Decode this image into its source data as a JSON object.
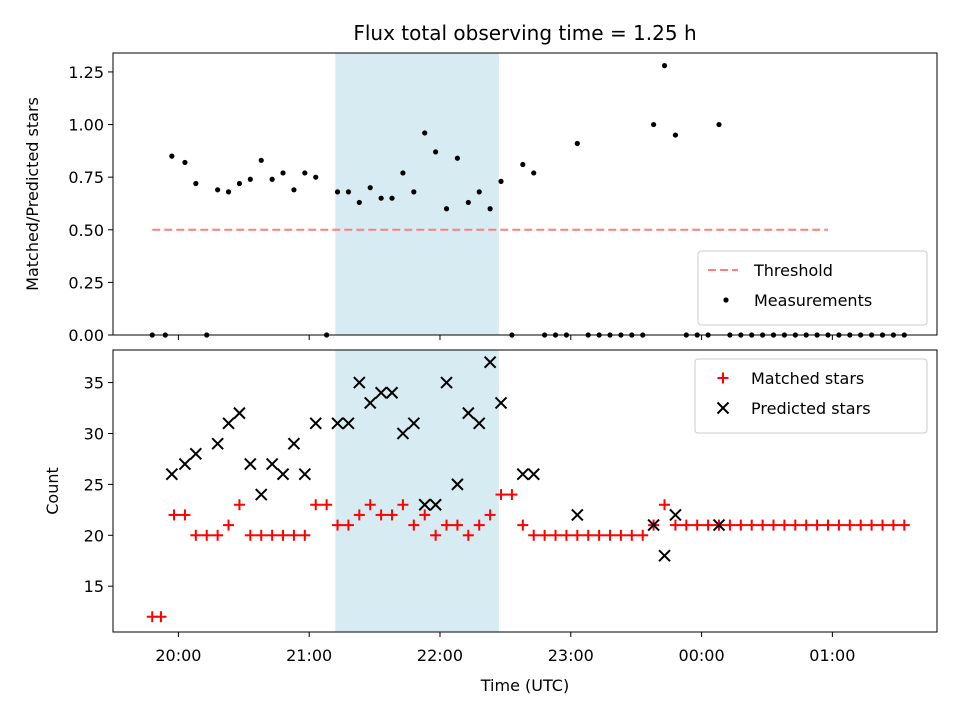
{
  "chart_data": {
    "type": "scatter",
    "title": "Flux total observing time = 1.25 h",
    "xlabel": "Time (UTC)",
    "x_ticks": [
      "20:00",
      "21:00",
      "22:00",
      "23:00",
      "00:00",
      "01:00"
    ],
    "shaded_interval": {
      "start": "21:12",
      "end": "22:27",
      "color": "#add8e6"
    },
    "panels": [
      {
        "ylabel": "Matched/Predicted stars",
        "ylim": [
          0,
          1.34
        ],
        "y_ticks": [
          "0.00",
          "0.25",
          "0.50",
          "0.75",
          "1.00",
          "1.25"
        ],
        "legend_position": "lower-right",
        "series": [
          {
            "name": "Threshold",
            "type": "line",
            "style": "dashed",
            "color": "#ff7f7f",
            "x_range": [
              "19:48",
              "24:58"
            ],
            "y": 0.5
          },
          {
            "name": "Measurements",
            "type": "scatter",
            "marker": "dot",
            "color": "#000000",
            "points": [
              [
                "19:48",
                0.0
              ],
              [
                "19:54",
                0.0
              ],
              [
                "19:57",
                0.85
              ],
              [
                "20:03",
                0.82
              ],
              [
                "20:08",
                0.72
              ],
              [
                "20:13",
                0.0
              ],
              [
                "20:18",
                0.69
              ],
              [
                "20:23",
                0.68
              ],
              [
                "20:28",
                0.72
              ],
              [
                "20:33",
                0.74
              ],
              [
                "20:38",
                0.83
              ],
              [
                "20:43",
                0.74
              ],
              [
                "20:48",
                0.77
              ],
              [
                "20:53",
                0.69
              ],
              [
                "20:58",
                0.77
              ],
              [
                "21:03",
                0.75
              ],
              [
                "21:08",
                0.0
              ],
              [
                "21:13",
                0.68
              ],
              [
                "21:18",
                0.68
              ],
              [
                "21:23",
                0.63
              ],
              [
                "21:28",
                0.7
              ],
              [
                "21:33",
                0.65
              ],
              [
                "21:38",
                0.65
              ],
              [
                "21:43",
                0.77
              ],
              [
                "21:48",
                0.68
              ],
              [
                "21:53",
                0.96
              ],
              [
                "21:58",
                0.87
              ],
              [
                "22:03",
                0.6
              ],
              [
                "22:08",
                0.84
              ],
              [
                "22:13",
                0.63
              ],
              [
                "22:18",
                0.68
              ],
              [
                "22:23",
                0.6
              ],
              [
                "22:28",
                0.73
              ],
              [
                "22:33",
                0.0
              ],
              [
                "22:38",
                0.81
              ],
              [
                "22:43",
                0.77
              ],
              [
                "22:48",
                0.0
              ],
              [
                "22:53",
                0.0
              ],
              [
                "22:58",
                0.0
              ],
              [
                "23:03",
                0.91
              ],
              [
                "23:08",
                0.0
              ],
              [
                "23:13",
                0.0
              ],
              [
                "23:18",
                0.0
              ],
              [
                "23:23",
                0.0
              ],
              [
                "23:28",
                0.0
              ],
              [
                "23:33",
                0.0
              ],
              [
                "23:38",
                1.0
              ],
              [
                "23:43",
                1.28
              ],
              [
                "23:48",
                0.95
              ],
              [
                "23:53",
                0.0
              ],
              [
                "23:58",
                0.0
              ],
              [
                "24:03",
                0.0
              ],
              [
                "24:08",
                1.0
              ],
              [
                "24:13",
                0.0
              ],
              [
                "24:18",
                0.0
              ],
              [
                "24:23",
                0.0
              ],
              [
                "24:28",
                0.0
              ],
              [
                "24:33",
                0.0
              ],
              [
                "24:38",
                0.0
              ],
              [
                "24:43",
                0.0
              ],
              [
                "24:48",
                0.0
              ],
              [
                "24:53",
                0.0
              ],
              [
                "24:58",
                0.0
              ],
              [
                "25:03",
                0.0
              ],
              [
                "25:08",
                0.0
              ],
              [
                "25:13",
                0.0
              ],
              [
                "25:18",
                0.0
              ],
              [
                "25:23",
                0.0
              ],
              [
                "25:28",
                0.0
              ],
              [
                "25:33",
                0.0
              ]
            ]
          }
        ]
      },
      {
        "ylabel": "Count",
        "ylim": [
          10.5,
          38.2
        ],
        "y_ticks": [
          "15",
          "20",
          "25",
          "30",
          "35"
        ],
        "legend_position": "upper-right",
        "series": [
          {
            "name": "Matched stars",
            "type": "scatter",
            "marker": "plus",
            "color": "#ff0000",
            "points": [
              [
                "19:48",
                12
              ],
              [
                "19:52",
                12
              ],
              [
                "19:58",
                22
              ],
              [
                "20:03",
                22
              ],
              [
                "20:08",
                20
              ],
              [
                "20:13",
                20
              ],
              [
                "20:18",
                20
              ],
              [
                "20:23",
                21
              ],
              [
                "20:28",
                23
              ],
              [
                "20:33",
                20
              ],
              [
                "20:38",
                20
              ],
              [
                "20:43",
                20
              ],
              [
                "20:48",
                20
              ],
              [
                "20:53",
                20
              ],
              [
                "20:58",
                20
              ],
              [
                "21:03",
                23
              ],
              [
                "21:08",
                23
              ],
              [
                "21:13",
                21
              ],
              [
                "21:18",
                21
              ],
              [
                "21:23",
                22
              ],
              [
                "21:28",
                23
              ],
              [
                "21:33",
                22
              ],
              [
                "21:38",
                22
              ],
              [
                "21:43",
                23
              ],
              [
                "21:48",
                21
              ],
              [
                "21:53",
                22
              ],
              [
                "21:58",
                20
              ],
              [
                "22:03",
                21
              ],
              [
                "22:08",
                21
              ],
              [
                "22:13",
                20
              ],
              [
                "22:18",
                21
              ],
              [
                "22:23",
                22
              ],
              [
                "22:28",
                24
              ],
              [
                "22:33",
                24
              ],
              [
                "22:38",
                21
              ],
              [
                "22:43",
                20
              ],
              [
                "22:48",
                20
              ],
              [
                "22:53",
                20
              ],
              [
                "22:58",
                20
              ],
              [
                "23:03",
                20
              ],
              [
                "23:08",
                20
              ],
              [
                "23:13",
                20
              ],
              [
                "23:18",
                20
              ],
              [
                "23:23",
                20
              ],
              [
                "23:28",
                20
              ],
              [
                "23:33",
                20
              ],
              [
                "23:38",
                21
              ],
              [
                "23:43",
                23
              ],
              [
                "23:48",
                21
              ],
              [
                "23:53",
                21
              ],
              [
                "23:58",
                21
              ],
              [
                "24:03",
                21
              ],
              [
                "24:08",
                21
              ],
              [
                "24:13",
                21
              ],
              [
                "24:18",
                21
              ],
              [
                "24:23",
                21
              ],
              [
                "24:28",
                21
              ],
              [
                "24:33",
                21
              ],
              [
                "24:38",
                21
              ],
              [
                "24:43",
                21
              ],
              [
                "24:48",
                21
              ],
              [
                "24:53",
                21
              ],
              [
                "24:58",
                21
              ],
              [
                "25:03",
                21
              ],
              [
                "25:08",
                21
              ],
              [
                "25:13",
                21
              ],
              [
                "25:18",
                21
              ],
              [
                "25:23",
                21
              ],
              [
                "25:28",
                21
              ],
              [
                "25:33",
                21
              ]
            ]
          },
          {
            "name": "Predicted stars",
            "type": "scatter",
            "marker": "x",
            "color": "#000000",
            "points": [
              [
                "19:57",
                26
              ],
              [
                "20:03",
                27
              ],
              [
                "20:08",
                28
              ],
              [
                "20:18",
                29
              ],
              [
                "20:23",
                31
              ],
              [
                "20:28",
                32
              ],
              [
                "20:33",
                27
              ],
              [
                "20:38",
                24
              ],
              [
                "20:43",
                27
              ],
              [
                "20:48",
                26
              ],
              [
                "20:53",
                29
              ],
              [
                "20:58",
                26
              ],
              [
                "21:03",
                31
              ],
              [
                "21:13",
                31
              ],
              [
                "21:18",
                31
              ],
              [
                "21:23",
                35
              ],
              [
                "21:28",
                33
              ],
              [
                "21:33",
                34
              ],
              [
                "21:38",
                34
              ],
              [
                "21:43",
                30
              ],
              [
                "21:48",
                31
              ],
              [
                "21:53",
                23
              ],
              [
                "21:58",
                23
              ],
              [
                "22:03",
                35
              ],
              [
                "22:08",
                25
              ],
              [
                "22:13",
                32
              ],
              [
                "22:18",
                31
              ],
              [
                "22:23",
                37
              ],
              [
                "22:28",
                33
              ],
              [
                "22:38",
                26
              ],
              [
                "22:43",
                26
              ],
              [
                "23:03",
                22
              ],
              [
                "23:38",
                21
              ],
              [
                "23:43",
                18
              ],
              [
                "23:48",
                22
              ],
              [
                "24:08",
                21
              ]
            ]
          }
        ]
      }
    ]
  }
}
